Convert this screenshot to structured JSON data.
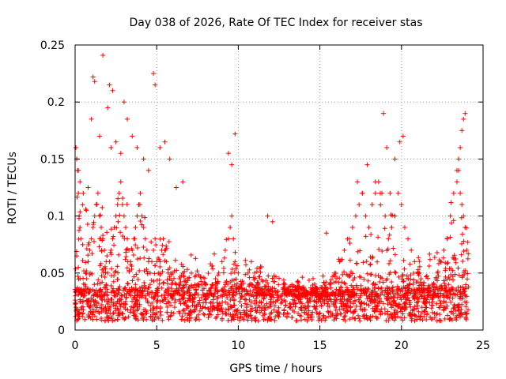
{
  "chart_data": {
    "type": "scatter",
    "title": "Day 038 of 2026, Rate Of TEC Index for receiver stas",
    "xlabel": "GPS time / hours",
    "ylabel": "ROTI / TECUs",
    "xlim": [
      0,
      25
    ],
    "ylim": [
      0,
      0.25
    ],
    "xticks": [
      0,
      5,
      10,
      15,
      20,
      25
    ],
    "xtick_labels": [
      "0",
      "5",
      "10",
      "15",
      "20",
      "25"
    ],
    "yticks": [
      0,
      0.05,
      0.1,
      0.15,
      0.2,
      0.25
    ],
    "ytick_labels": [
      "0",
      "0.05",
      "0.1",
      "0.15",
      "0.2",
      "0.25"
    ],
    "grid": true,
    "marker": "+",
    "color": "#ff0000",
    "series": [
      {
        "x": [
          0.05,
          0.1,
          0.15,
          0.2,
          0.25,
          0.3,
          0.35,
          0.1,
          0.2,
          0.3,
          0.05,
          0.15,
          0.25,
          0.4,
          0.5,
          0.6,
          0.7,
          0.8,
          0.9,
          1.0,
          1.1,
          1.2,
          1.3,
          1.4,
          1.5,
          1.6,
          1.7,
          1.8,
          1.9,
          2.0,
          2.1,
          2.2,
          2.3,
          2.4,
          2.5,
          2.6,
          2.7,
          2.8,
          2.9,
          3.0,
          3.1,
          3.2,
          3.3,
          3.4,
          3.5,
          3.6,
          3.7,
          3.8,
          3.9,
          4.0,
          4.1,
          4.2,
          4.3,
          4.4,
          4.5,
          4.6,
          4.7,
          4.8,
          4.9,
          5.0,
          5.1,
          5.2,
          5.3,
          5.4,
          5.5,
          5.6,
          5.7,
          5.8,
          5.9,
          6.0,
          6.2,
          6.4,
          6.6,
          6.8,
          7.0,
          7.2,
          7.4,
          7.6,
          7.8,
          8.0,
          8.2,
          8.4,
          8.6,
          8.8,
          9.0,
          9.2,
          9.4,
          9.5,
          9.6,
          9.7,
          9.8,
          10.0,
          10.2,
          10.4,
          10.6,
          10.8,
          11.0,
          11.2,
          11.4,
          11.6,
          11.8,
          12.0,
          12.3,
          12.6,
          12.9,
          13.2,
          13.5,
          13.8,
          14.1,
          14.4,
          14.7,
          15.0,
          15.3,
          15.6,
          15.9,
          16.2,
          16.5,
          16.8,
          17.0,
          17.2,
          17.4,
          17.6,
          17.8,
          18.0,
          18.2,
          18.4,
          18.6,
          18.8,
          19.0,
          19.2,
          19.4,
          19.6,
          19.8,
          20.0,
          20.2,
          20.4,
          20.6,
          20.8,
          21.0,
          21.2,
          21.4,
          21.6,
          21.8,
          22.0,
          22.2,
          22.4,
          22.6,
          22.8,
          23.0,
          23.2,
          23.4,
          23.5,
          23.6,
          23.7,
          23.8,
          23.9,
          24.0,
          1.1,
          1.2,
          2.0,
          2.1,
          2.3,
          3.0,
          3.2,
          4.8,
          4.9,
          0.1,
          0.2,
          0.3,
          0.5,
          0.8,
          1.0,
          1.5,
          2.2,
          2.5,
          2.8,
          3.5,
          3.8,
          4.2,
          4.5,
          5.2,
          5.5,
          5.8,
          6.2,
          6.6,
          9.4,
          9.6,
          9.8,
          11.8,
          12.1,
          15.4,
          17.3,
          17.6,
          17.9,
          18.4,
          18.7,
          18.9,
          19.1,
          19.3,
          19.6,
          19.9,
          20.1,
          23.4,
          23.5,
          23.6,
          23.7,
          23.8,
          23.9,
          0.3,
          0.6,
          0.9,
          1.3,
          1.6,
          1.9,
          2.4,
          2.7,
          3.1,
          3.4,
          3.7,
          4.0,
          4.3,
          4.6,
          5.0,
          5.3,
          5.7,
          6.1,
          6.5,
          7.3,
          8.5,
          9.3,
          10.1,
          10.5,
          11.3,
          13.0,
          14.0,
          15.0,
          16.0,
          16.8,
          17.5,
          18.1,
          18.5,
          19.0,
          19.5,
          20.3,
          21.0,
          21.7,
          22.3,
          22.9,
          23.3,
          23.9
        ],
        "y": [
          0.16,
          0.15,
          0.14,
          0.12,
          0.1,
          0.09,
          0.08,
          0.065,
          0.055,
          0.045,
          0.02,
          0.018,
          0.015,
          0.02,
          0.03,
          0.04,
          0.05,
          0.06,
          0.07,
          0.08,
          0.09,
          0.1,
          0.11,
          0.12,
          0.1,
          0.09,
          0.08,
          0.07,
          0.06,
          0.05,
          0.06,
          0.07,
          0.08,
          0.09,
          0.1,
          0.11,
          0.12,
          0.13,
          0.11,
          0.1,
          0.09,
          0.08,
          0.07,
          0.06,
          0.07,
          0.08,
          0.09,
          0.1,
          0.11,
          0.12,
          0.1,
          0.09,
          0.08,
          0.07,
          0.06,
          0.05,
          0.06,
          0.07,
          0.08,
          0.06,
          0.05,
          0.06,
          0.07,
          0.08,
          0.07,
          0.06,
          0.05,
          0.045,
          0.04,
          0.05,
          0.04,
          0.045,
          0.05,
          0.04,
          0.035,
          0.03,
          0.035,
          0.04,
          0.035,
          0.03,
          0.035,
          0.04,
          0.045,
          0.05,
          0.06,
          0.07,
          0.08,
          0.09,
          0.1,
          0.08,
          0.06,
          0.05,
          0.04,
          0.035,
          0.05,
          0.06,
          0.05,
          0.04,
          0.035,
          0.03,
          0.035,
          0.03,
          0.025,
          0.03,
          0.025,
          0.02,
          0.03,
          0.025,
          0.03,
          0.025,
          0.02,
          0.03,
          0.035,
          0.04,
          0.05,
          0.06,
          0.07,
          0.08,
          0.09,
          0.1,
          0.11,
          0.12,
          0.1,
          0.09,
          0.11,
          0.12,
          0.13,
          0.12,
          0.1,
          0.08,
          0.09,
          0.1,
          0.12,
          0.11,
          0.09,
          0.08,
          0.07,
          0.06,
          0.05,
          0.04,
          0.035,
          0.03,
          0.035,
          0.04,
          0.05,
          0.06,
          0.07,
          0.08,
          0.1,
          0.12,
          0.13,
          0.14,
          0.12,
          0.11,
          0.1,
          0.09,
          0.07,
          0.222,
          0.218,
          0.195,
          0.215,
          0.21,
          0.2,
          0.185,
          0.225,
          0.215,
          0.15,
          0.14,
          0.13,
          0.12,
          0.125,
          0.185,
          0.17,
          0.16,
          0.165,
          0.155,
          0.17,
          0.16,
          0.15,
          0.14,
          0.16,
          0.165,
          0.15,
          0.125,
          0.13,
          0.155,
          0.145,
          0.172,
          0.1,
          0.095,
          0.085,
          0.13,
          0.12,
          0.145,
          0.13,
          0.12,
          0.19,
          0.16,
          0.12,
          0.15,
          0.165,
          0.17,
          0.14,
          0.15,
          0.16,
          0.175,
          0.185,
          0.19,
          0.025,
          0.03,
          0.02,
          0.035,
          0.03,
          0.04,
          0.03,
          0.035,
          0.025,
          0.03,
          0.04,
          0.035,
          0.03,
          0.04,
          0.035,
          0.03,
          0.025,
          0.02,
          0.03,
          0.025,
          0.02,
          0.03,
          0.025,
          0.02,
          0.02,
          0.015,
          0.02,
          0.015,
          0.02,
          0.025,
          0.03,
          0.025,
          0.03,
          0.035,
          0.025,
          0.02,
          0.025,
          0.03,
          0.035,
          0.04,
          0.035,
          0.03
        ]
      }
    ]
  },
  "highlight_points": {
    "x": [
      1.7
    ],
    "y": [
      0.241
    ]
  }
}
